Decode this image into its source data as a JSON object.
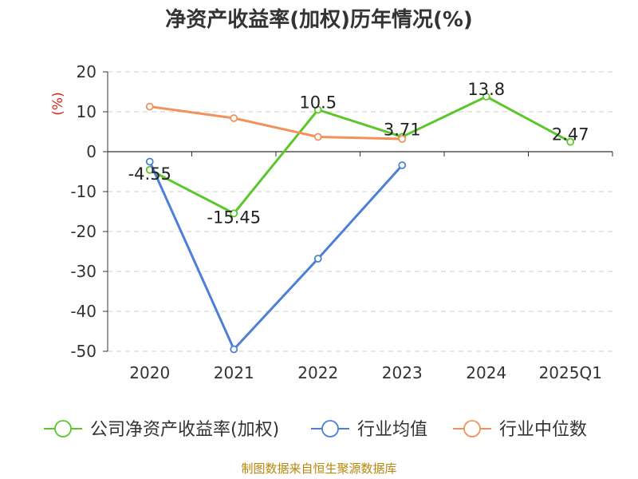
{
  "title": "净资产收益率(加权)历年情况(%)",
  "source": "制图数据来自恒生聚源数据库",
  "chart_data": {
    "type": "line",
    "categories": [
      "2020",
      "2021",
      "2022",
      "2023",
      "2024",
      "2025Q1"
    ],
    "ylabel": "(%)",
    "ylim": [
      -50,
      20
    ],
    "yticks": [
      20,
      10,
      0,
      -10,
      -20,
      -30,
      -40,
      -50
    ],
    "grid": true,
    "legend": "bottom",
    "series": [
      {
        "name": "公司净资产收益率(加权)",
        "color": "#5bc72a",
        "values": [
          -4.55,
          -15.45,
          10.5,
          3.71,
          13.8,
          2.47
        ],
        "labels": [
          "-4.55",
          "-15.45",
          "10.5",
          "3.71",
          "13.8",
          "2.47"
        ]
      },
      {
        "name": "行业均值",
        "color": "#4e7fd8",
        "values": [
          -2.5,
          -49.5,
          -26.8,
          -3.4,
          null,
          null
        ]
      },
      {
        "name": "行业中位数",
        "color": "#f4915a",
        "values": [
          11.3,
          8.4,
          3.7,
          3.2,
          null,
          null
        ]
      }
    ]
  }
}
